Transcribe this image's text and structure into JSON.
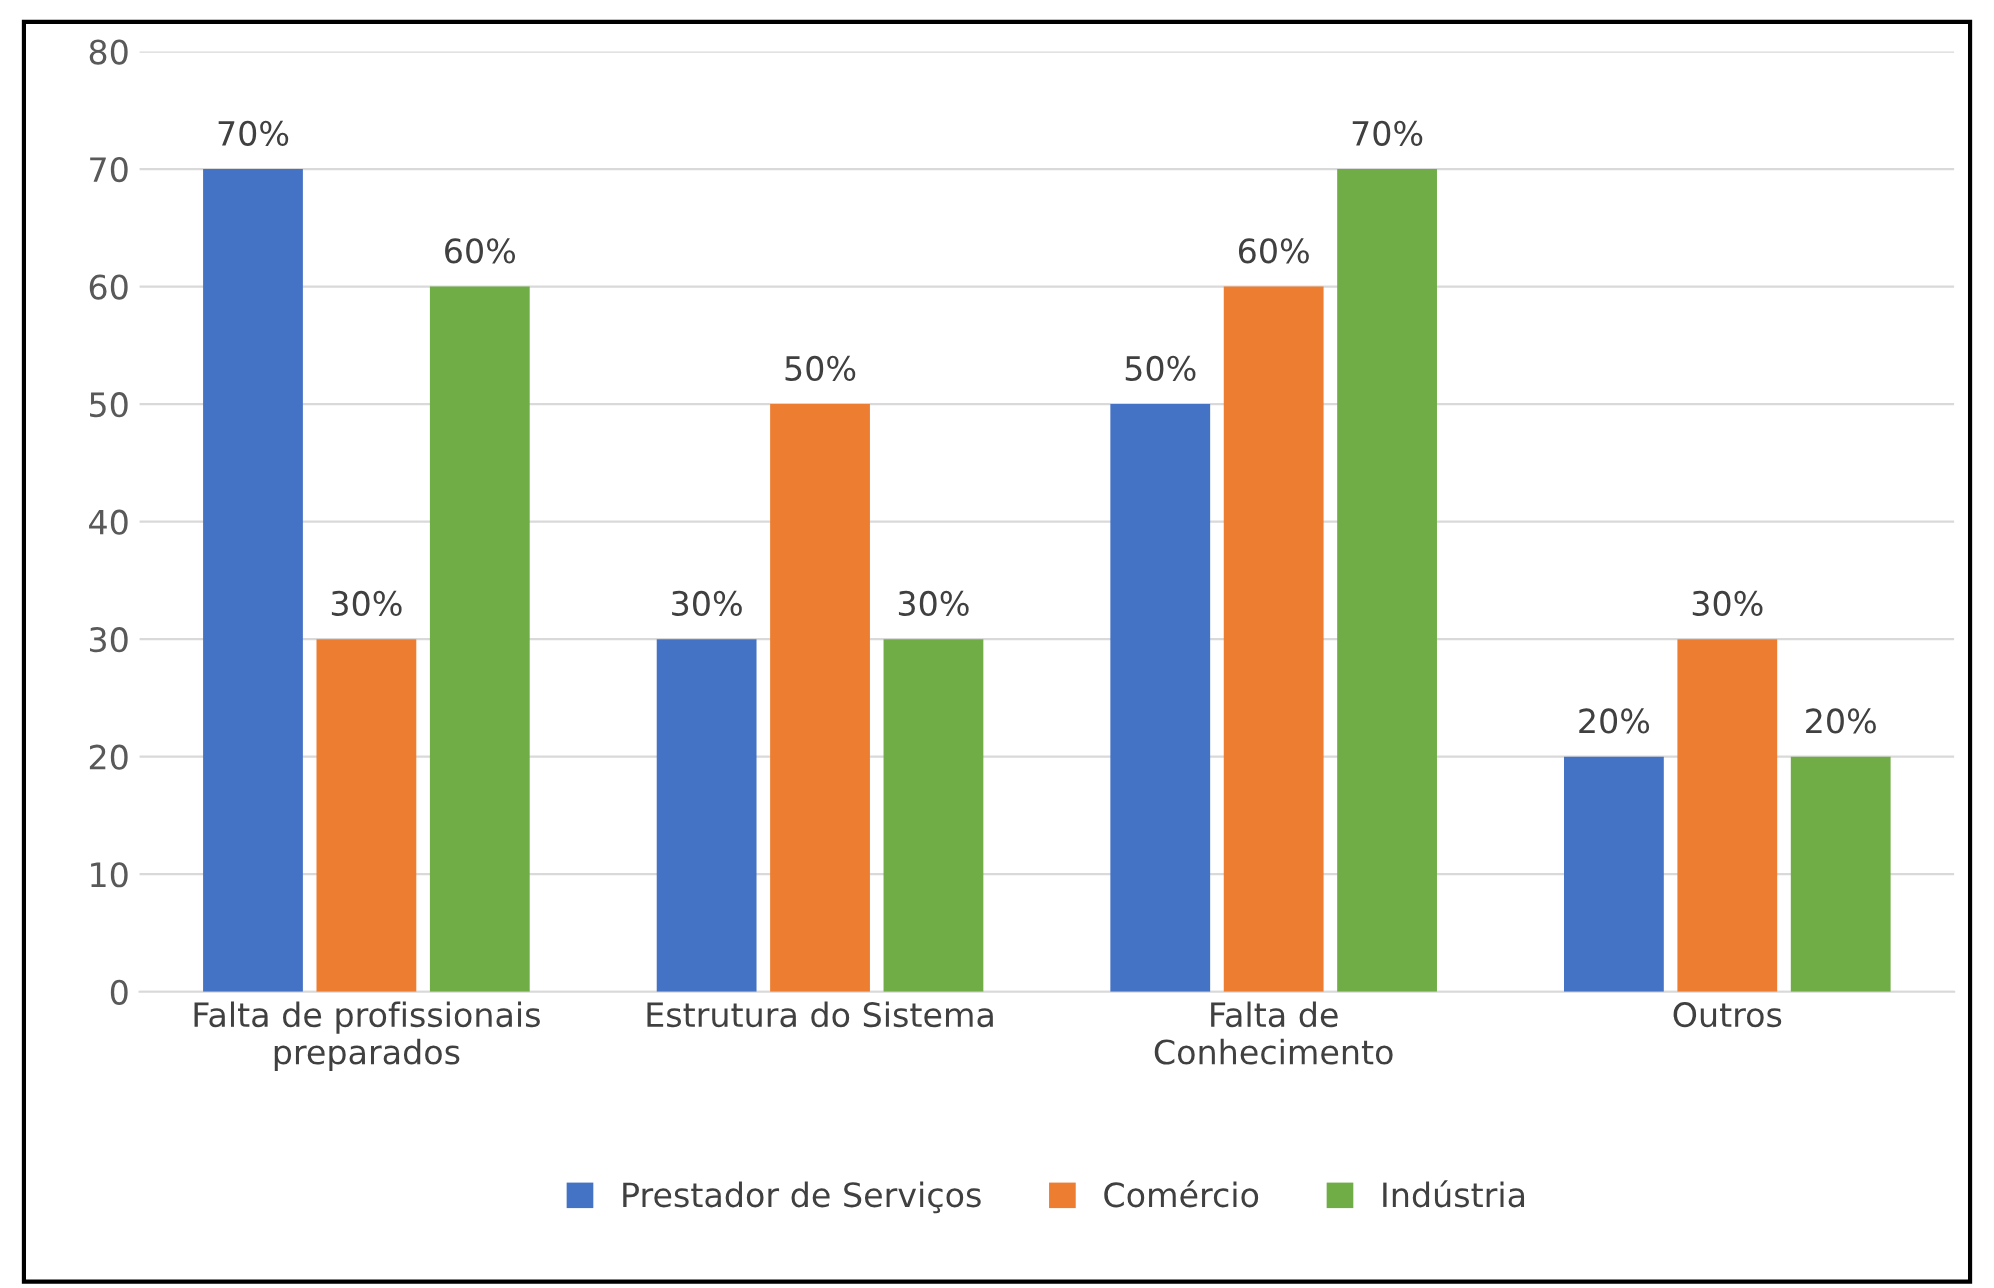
{
  "chart_data": {
    "type": "bar",
    "categories": [
      "Falta de profissionais\npreparados",
      "Estrutura do Sistema",
      "Falta de\nConhecimento",
      "Outros"
    ],
    "series": [
      {
        "name": "Prestador de Serviços",
        "color": "#4472c4",
        "values": [
          70,
          30,
          50,
          20
        ],
        "value_labels": [
          "70%",
          "30%",
          "50%",
          "20%"
        ]
      },
      {
        "name": "Comércio",
        "color": "#ed7d31",
        "values": [
          30,
          50,
          60,
          30
        ],
        "value_labels": [
          "30%",
          "50%",
          "60%",
          "30%"
        ]
      },
      {
        "name": "Indústria",
        "color": "#70ad47",
        "values": [
          60,
          30,
          70,
          20
        ],
        "value_labels": [
          "60%",
          "30%",
          "70%",
          "20%"
        ]
      }
    ],
    "ylim": [
      0,
      80
    ],
    "yticks": [
      0,
      10,
      20,
      30,
      40,
      50,
      60,
      70,
      80
    ],
    "grid": "y",
    "legend": "bottom"
  }
}
